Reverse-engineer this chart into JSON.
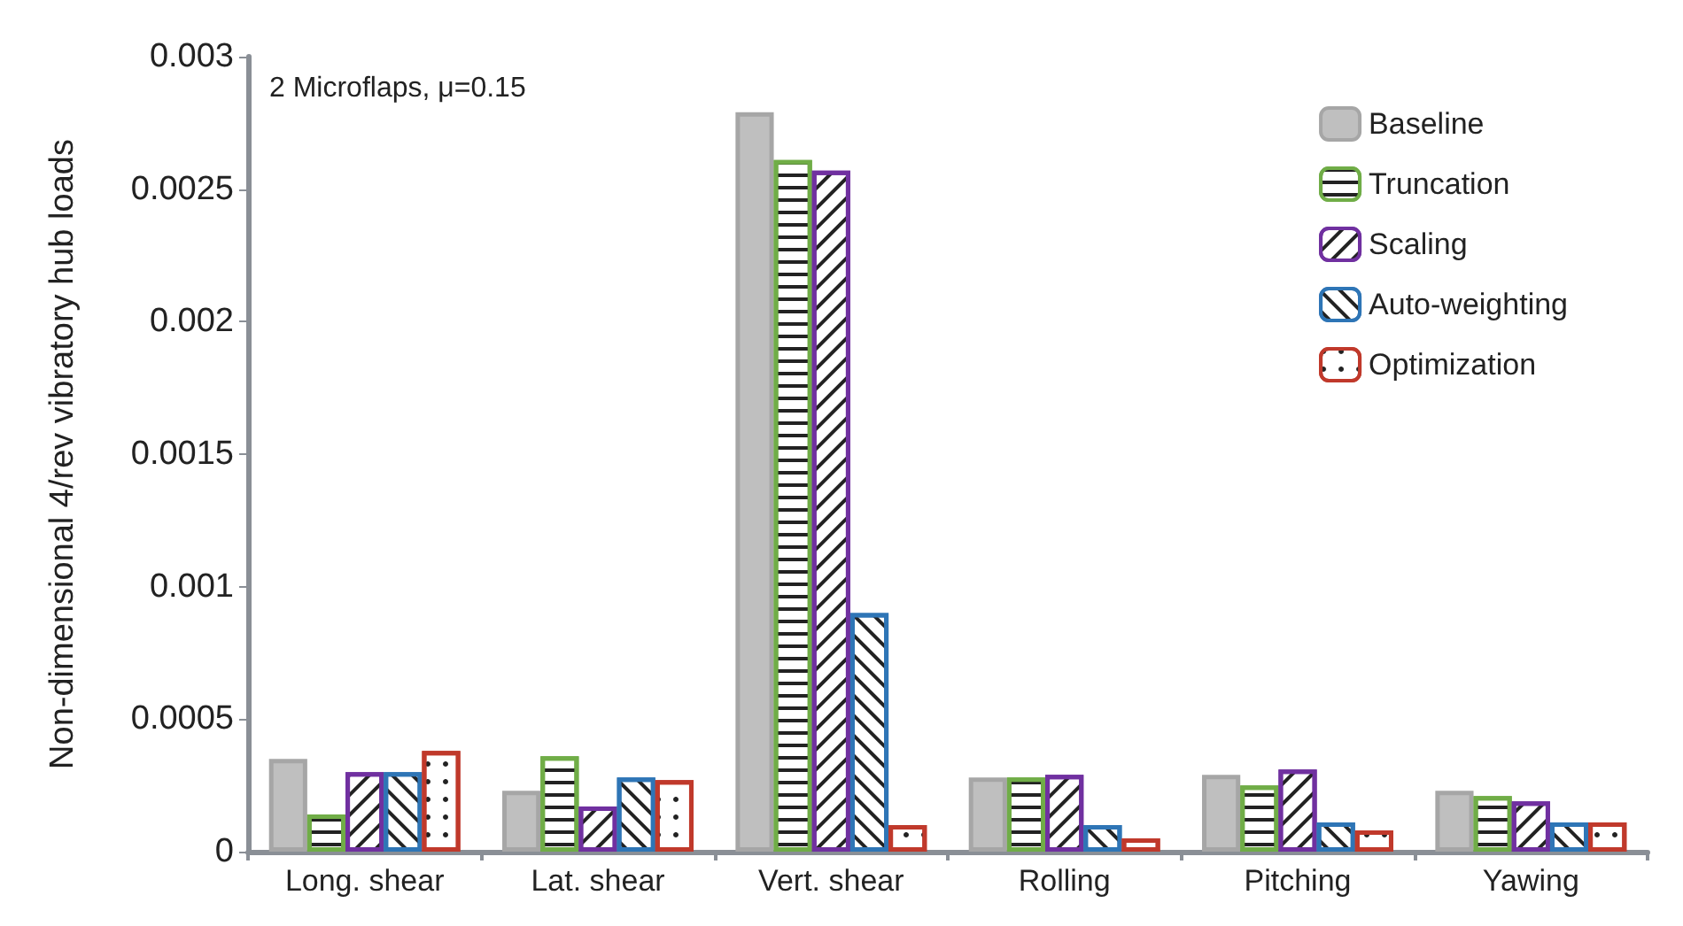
{
  "chart_data": {
    "type": "bar",
    "ylabel": "Non-dimensional 4/rev vibratory hub loads",
    "annotations": [
      "2 Microflaps, μ=0.15"
    ],
    "categories": [
      "Long. shear",
      "Lat. shear",
      "Vert. shear",
      "Rolling",
      "Pitching",
      "Yawing"
    ],
    "series": [
      {
        "name": "Baseline",
        "color": "#a6a6a6",
        "values": [
          0.00035,
          0.00023,
          0.00279,
          0.00028,
          0.00029,
          0.00023
        ]
      },
      {
        "name": "Truncation",
        "color": "#70ad47",
        "values": [
          0.00014,
          0.00036,
          0.00261,
          0.00028,
          0.00025,
          0.00021
        ]
      },
      {
        "name": "Scaling",
        "color": "#7030a0",
        "values": [
          0.0003,
          0.00017,
          0.00257,
          0.00029,
          0.00031,
          0.00019
        ]
      },
      {
        "name": "Auto-weighting",
        "color": "#2e75b6",
        "values": [
          0.0003,
          0.00028,
          0.0009,
          0.0001,
          0.00011,
          0.00011
        ]
      },
      {
        "name": "Optimization",
        "color": "#c0392b",
        "values": [
          0.00038,
          0.00027,
          0.0001,
          5e-05,
          8e-05,
          0.00011
        ]
      }
    ],
    "ylim": [
      0,
      0.003
    ],
    "yticks": [
      0,
      0.0005,
      0.001,
      0.0015,
      0.002,
      0.0025,
      0.003
    ],
    "grid": false,
    "legend": "top right"
  }
}
